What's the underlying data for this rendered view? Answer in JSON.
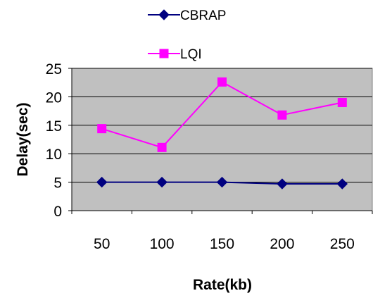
{
  "chart_data": {
    "type": "line",
    "title": "",
    "xlabel": "Rate(kb)",
    "ylabel": "Delay(sec)",
    "categories": [
      "50",
      "100",
      "150",
      "200",
      "250"
    ],
    "ylim": [
      0,
      25
    ],
    "yticks": [
      "0",
      "5",
      "10",
      "15",
      "20",
      "25"
    ],
    "grid": true,
    "legend": "top",
    "series": [
      {
        "name": "CBRAP",
        "values": [
          5,
          5,
          5,
          4.7,
          4.7
        ],
        "color": "#000080",
        "marker": "diamond"
      },
      {
        "name": "LQI",
        "values": [
          14.4,
          11.1,
          22.6,
          16.8,
          19
        ],
        "color": "#ff00ff",
        "marker": "square"
      }
    ],
    "plot_background": "#c0c0c0"
  }
}
